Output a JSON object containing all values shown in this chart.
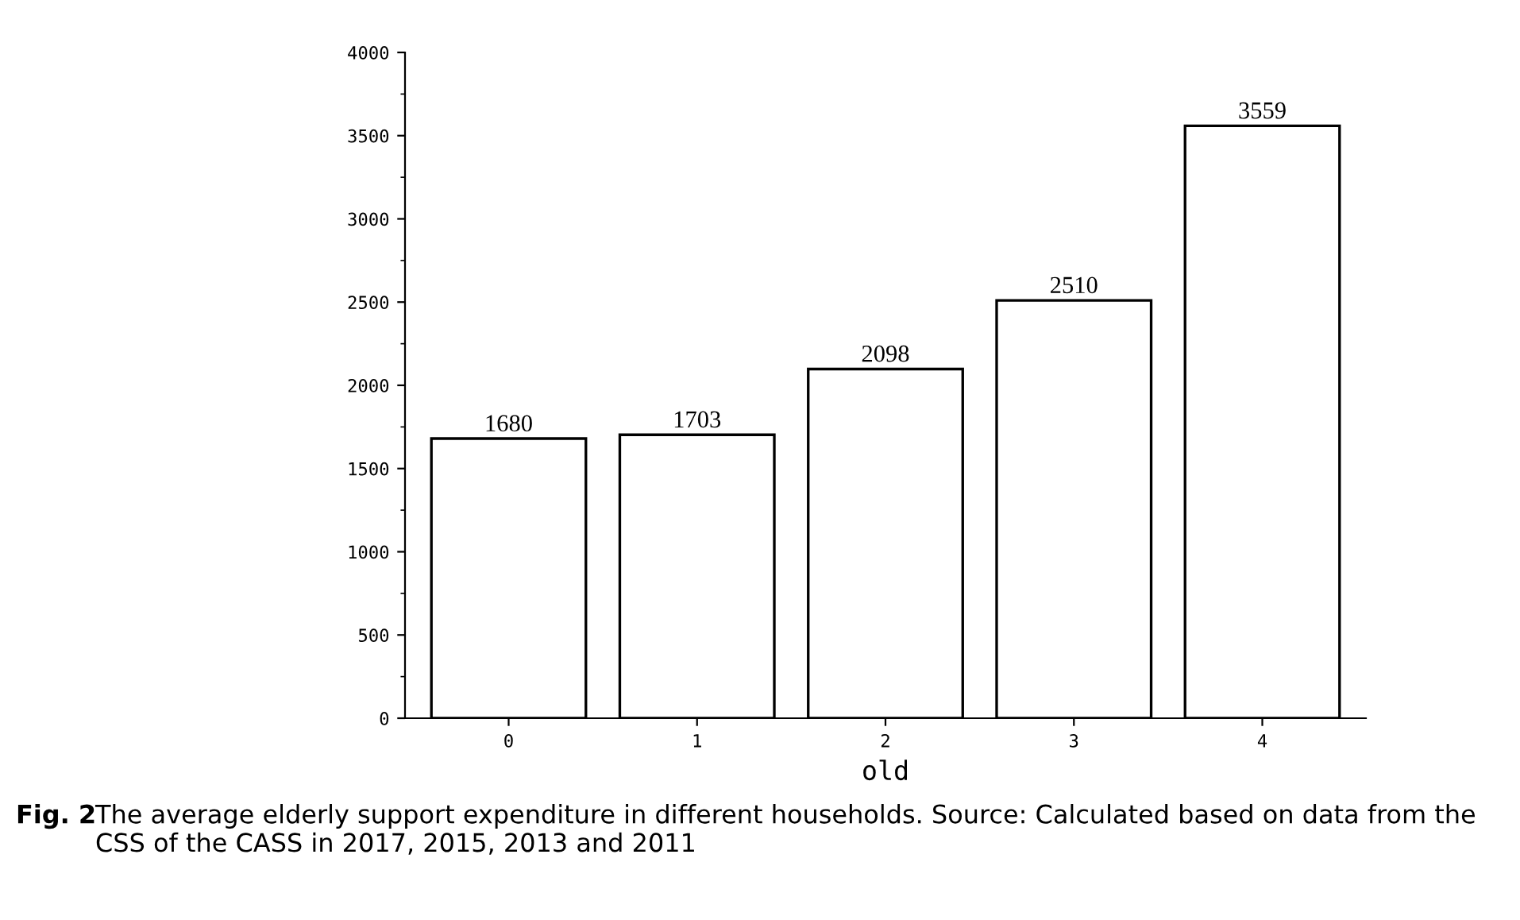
{
  "chart_data": {
    "type": "bar",
    "xlabel": "old",
    "categories": [
      "0",
      "1",
      "2",
      "3",
      "4"
    ],
    "values": [
      1680,
      1703,
      2098,
      2510,
      3559
    ],
    "color": "#ffffff",
    "ylim": [
      0,
      4000
    ],
    "yticks": [
      0,
      500,
      1000,
      1500,
      2000,
      2500,
      3000,
      3500,
      4000
    ],
    "grid": false,
    "data_labels": true,
    "annotations": [
      "Fig. 2",
      "The average elderly support expenditure in different households. Source: Calculated based on data from the CSS of the CASS in 2017, 2015, 2013 and 2011"
    ]
  }
}
